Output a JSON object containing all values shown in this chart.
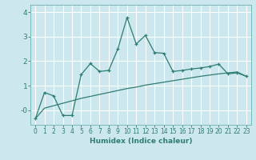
{
  "xlabel": "Humidex (Indice chaleur)",
  "ylabel": "",
  "xlim": [
    -0.5,
    23.5
  ],
  "ylim": [
    -0.6,
    4.3
  ],
  "background_color": "#cce8ee",
  "grid_color": "#ffffff",
  "line_color": "#2e7d70",
  "x_jagged": [
    0,
    1,
    2,
    3,
    4,
    5,
    6,
    7,
    8,
    9,
    10,
    11,
    12,
    13,
    14,
    15,
    16,
    17,
    18,
    19,
    20,
    21,
    22,
    23
  ],
  "y_jagged": [
    -0.35,
    0.72,
    0.58,
    -0.22,
    -0.22,
    1.45,
    1.9,
    1.58,
    1.62,
    2.5,
    3.78,
    2.7,
    3.05,
    2.35,
    2.32,
    1.58,
    1.62,
    1.68,
    1.72,
    1.78,
    1.88,
    1.48,
    1.52,
    1.38
  ],
  "x_smooth": [
    0,
    1,
    2,
    3,
    4,
    5,
    6,
    7,
    8,
    9,
    10,
    11,
    12,
    13,
    14,
    15,
    16,
    17,
    18,
    19,
    20,
    21,
    22,
    23
  ],
  "y_smooth": [
    -0.35,
    0.08,
    0.18,
    0.28,
    0.38,
    0.48,
    0.56,
    0.64,
    0.72,
    0.8,
    0.88,
    0.94,
    1.02,
    1.08,
    1.14,
    1.2,
    1.26,
    1.32,
    1.38,
    1.43,
    1.48,
    1.52,
    1.56,
    1.38
  ],
  "yticks": [
    0,
    1,
    2,
    3,
    4
  ],
  "ytick_labels": [
    "-0",
    "1",
    "2",
    "3",
    "4"
  ],
  "xticks": [
    0,
    1,
    2,
    3,
    4,
    5,
    6,
    7,
    8,
    9,
    10,
    11,
    12,
    13,
    14,
    15,
    16,
    17,
    18,
    19,
    20,
    21,
    22,
    23
  ],
  "tick_fontsize": 5.5,
  "xlabel_fontsize": 6.5,
  "xlabel_color": "#2e7d70",
  "spine_color": "#7ab8b8"
}
